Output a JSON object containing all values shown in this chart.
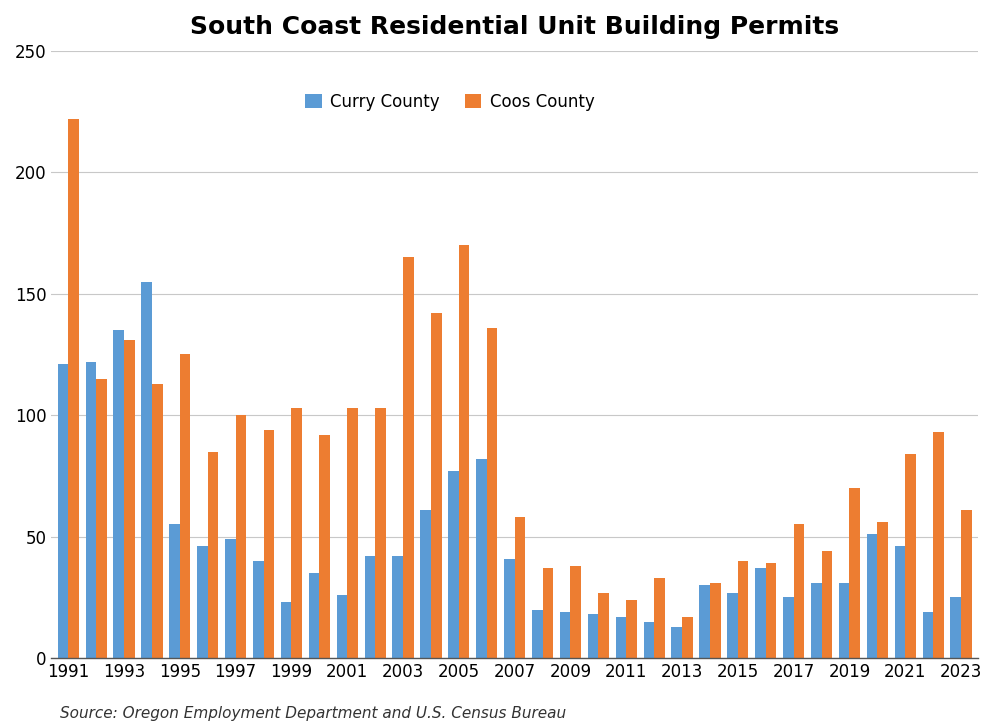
{
  "title": "South Coast Residential Unit Building Permits",
  "source": "Source: Oregon Employment Department and U.S. Census Bureau",
  "legend_labels": [
    "Curry County",
    "Coos County"
  ],
  "curry_color": "#5b9bd5",
  "coos_color": "#ed7d31",
  "years": [
    1991,
    1992,
    1993,
    1994,
    1995,
    1996,
    1997,
    1998,
    1999,
    2000,
    2001,
    2002,
    2003,
    2004,
    2005,
    2006,
    2007,
    2008,
    2009,
    2010,
    2011,
    2012,
    2013,
    2014,
    2015,
    2016,
    2017,
    2018,
    2019,
    2020,
    2021,
    2022,
    2023
  ],
  "curry": [
    121,
    122,
    135,
    155,
    55,
    46,
    49,
    40,
    23,
    35,
    26,
    42,
    42,
    61,
    77,
    82,
    41,
    20,
    19,
    18,
    17,
    15,
    13,
    30,
    27,
    37,
    25,
    31,
    31,
    51,
    46,
    19,
    25
  ],
  "coos": [
    222,
    115,
    131,
    113,
    125,
    85,
    100,
    94,
    103,
    92,
    103,
    103,
    165,
    142,
    170,
    136,
    58,
    37,
    38,
    27,
    24,
    33,
    17,
    31,
    40,
    39,
    55,
    44,
    70,
    56,
    84,
    93,
    61
  ],
  "ylim": [
    0,
    250
  ],
  "yticks": [
    0,
    50,
    100,
    150,
    200,
    250
  ],
  "xtick_years": [
    1991,
    1993,
    1995,
    1997,
    1999,
    2001,
    2003,
    2005,
    2007,
    2009,
    2011,
    2013,
    2015,
    2017,
    2019,
    2021,
    2023
  ],
  "background_color": "#ffffff",
  "grid_color": "#c8c8c8",
  "title_fontsize": 18,
  "tick_fontsize": 12,
  "legend_fontsize": 12,
  "source_fontsize": 11
}
